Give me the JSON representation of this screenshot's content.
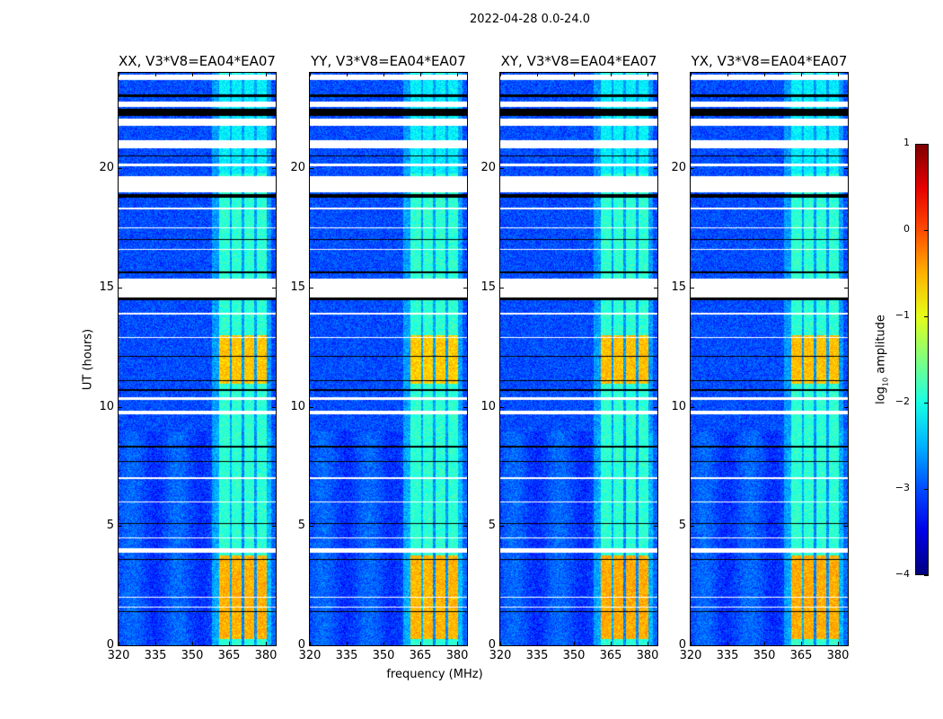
{
  "chart_data": {
    "type": "heatmap",
    "title": "2022-04-28 0.0-24.0",
    "xlabel": "frequency (MHz)",
    "ylabel": "UT (hours)",
    "xlim": [
      320,
      384
    ],
    "ylim": [
      0,
      24
    ],
    "xticks": [
      320,
      335,
      350,
      365,
      380
    ],
    "yticks": [
      0,
      5,
      10,
      15,
      20
    ],
    "panels": [
      {
        "title": "XX, V3*V8=EA04*EA07",
        "strength": 1.0
      },
      {
        "title": "YY, V3*V8=EA04*EA07",
        "strength": 1.05
      },
      {
        "title": "XY, V3*V8=EA04*EA07",
        "strength": 0.95
      },
      {
        "title": "YX, V3*V8=EA04*EA07",
        "strength": 0.95
      }
    ],
    "background_log_amplitude": -3.0,
    "rfi_subbands_mhz": [
      [
        360.7,
        365
      ],
      [
        365.8,
        369.8
      ],
      [
        370.9,
        374.9
      ],
      [
        376,
        380
      ]
    ],
    "rfi_log_amplitude": -1.9,
    "bright_intervals_hours": [
      [
        0.3,
        3.8,
        -0.5
      ],
      [
        11.0,
        13.0,
        -0.6
      ]
    ],
    "flagged_white_hours": [
      [
        23.7,
        23.95
      ],
      [
        22.6,
        22.8
      ],
      [
        21.8,
        22.1
      ],
      [
        20.85,
        21.2
      ],
      [
        20.1,
        20.2
      ],
      [
        19.0,
        19.7
      ],
      [
        18.3,
        18.35
      ],
      [
        17.5,
        17.55
      ],
      [
        16.6,
        16.65
      ],
      [
        14.6,
        15.4
      ],
      [
        13.9,
        13.95
      ],
      [
        12.9,
        12.95
      ],
      [
        10.3,
        10.4
      ],
      [
        9.7,
        9.85
      ],
      [
        7.0,
        7.05
      ],
      [
        6.0,
        6.05
      ],
      [
        4.5,
        4.55
      ],
      [
        3.9,
        4.1
      ],
      [
        2.0,
        2.05
      ],
      [
        1.6,
        1.65
      ]
    ],
    "flagged_black_hours": [
      [
        23.0,
        23.1
      ],
      [
        22.2,
        22.5
      ],
      [
        20.5,
        20.55
      ],
      [
        18.8,
        18.95
      ],
      [
        17.0,
        17.05
      ],
      [
        15.6,
        15.7
      ],
      [
        14.5,
        14.6
      ],
      [
        12.1,
        12.15
      ],
      [
        11.1,
        11.15
      ],
      [
        10.7,
        10.75
      ],
      [
        8.3,
        8.4
      ],
      [
        7.7,
        7.75
      ],
      [
        5.1,
        5.15
      ],
      [
        3.6,
        3.65
      ],
      [
        1.4,
        1.45
      ]
    ],
    "colorbar": {
      "label": "log10 amplitude",
      "label_main": "log",
      "label_sub": "10",
      "label_rest": " amplitude",
      "range": [
        -4,
        1
      ],
      "ticks": [
        "1",
        "0",
        "−1",
        "−2",
        "−3",
        "−4"
      ]
    }
  }
}
